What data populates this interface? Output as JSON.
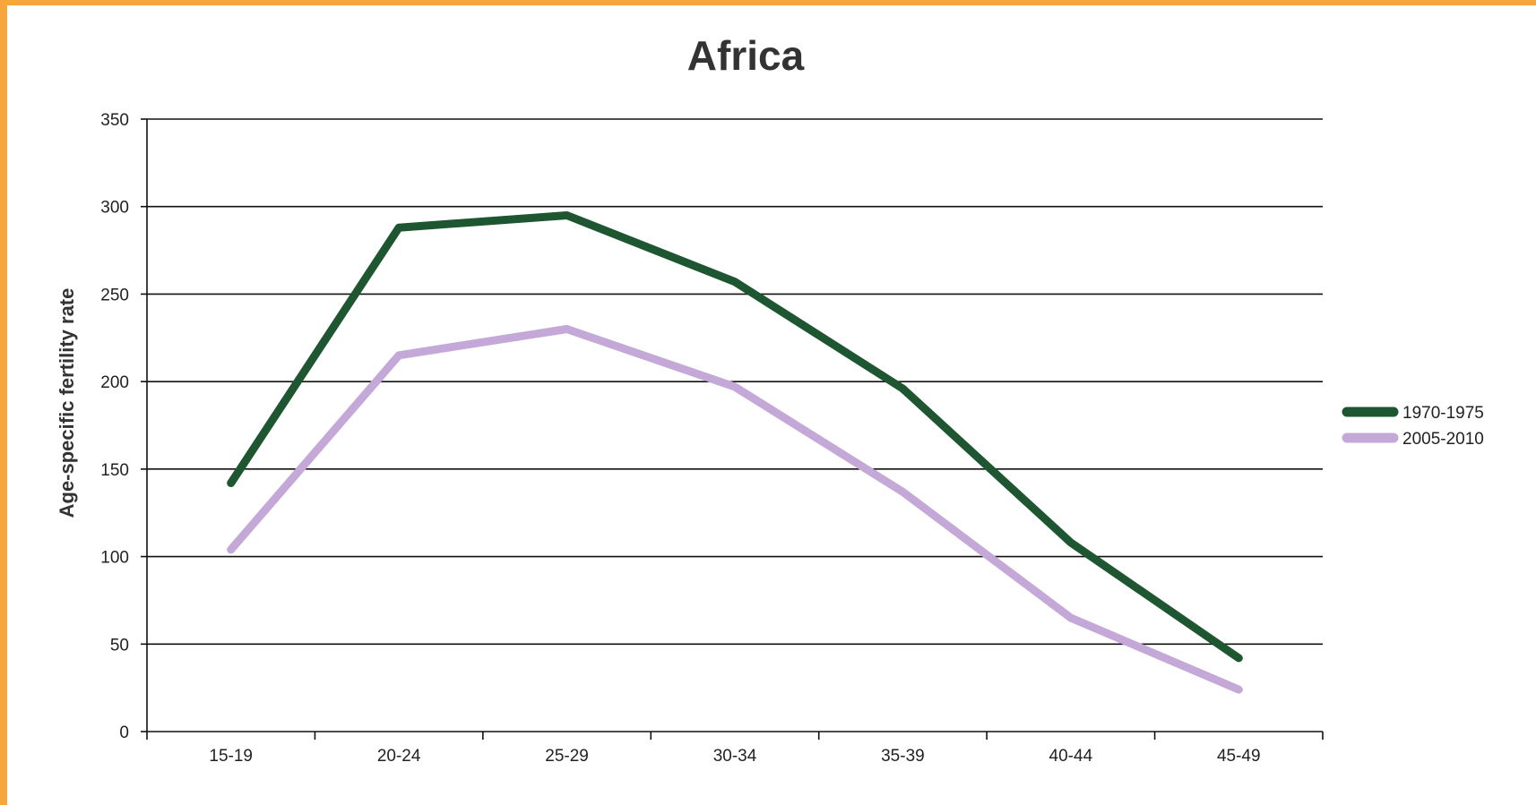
{
  "chart_data": {
    "type": "line",
    "title": "Africa",
    "xlabel": "",
    "ylabel": "Age-specific fertility rate",
    "categories": [
      "15-19",
      "20-24",
      "25-29",
      "30-34",
      "35-39",
      "40-44",
      "45-49"
    ],
    "ylim": [
      0,
      350
    ],
    "yticks": [
      0,
      50,
      100,
      150,
      200,
      250,
      300,
      350
    ],
    "grid": true,
    "legend_position": "right",
    "series": [
      {
        "name": "1970-1975",
        "color": "#1E5631",
        "values": [
          142,
          288,
          295,
          257,
          196,
          108,
          42
        ]
      },
      {
        "name": "2005-2010",
        "color": "#C4A8D8",
        "values": [
          104,
          215,
          230,
          197,
          137,
          65,
          24
        ]
      }
    ]
  },
  "frame": {
    "border_color": "#F6A63A",
    "background": "#FFFFFF"
  }
}
